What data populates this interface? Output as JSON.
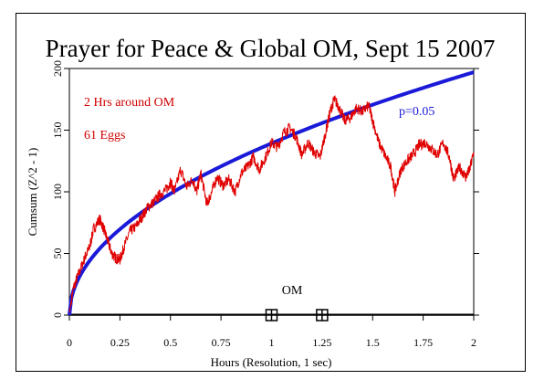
{
  "chart_data": {
    "type": "line",
    "title": "Prayer for Peace & Global OM, Sept 15 2007",
    "xlabel": "Hours (Resolution, 1 sec)",
    "ylabel": "Cumsum (Z^2 - 1)",
    "xlim": [
      0,
      2
    ],
    "ylim": [
      0,
      200
    ],
    "x_ticks": [
      "0",
      "0.25",
      "0.5",
      "0.75",
      "1",
      "1.25",
      "1.5",
      "1.75",
      "2"
    ],
    "y_ticks": [
      "0",
      "50",
      "100",
      "150",
      "200"
    ],
    "annotations": {
      "duration": "2 Hrs around OM",
      "eggs": "61 Eggs",
      "p_label": "p=0.05",
      "event_label": "OM"
    },
    "event_markers_x": [
      1.0,
      1.25
    ],
    "colors": {
      "cumsum": "#e00000",
      "p_curve": "#1a1ad8",
      "text_red": "#d00000",
      "text_blue": "#1a1ad8"
    },
    "series": [
      {
        "x": [
          0,
          0.02,
          0.05,
          0.08,
          0.1,
          0.12,
          0.15,
          0.17,
          0.19,
          0.21,
          0.23,
          0.25,
          0.27,
          0.3,
          0.33,
          0.36,
          0.39,
          0.42,
          0.45,
          0.48,
          0.5,
          0.52,
          0.55,
          0.58,
          0.61,
          0.63,
          0.65,
          0.68,
          0.7,
          0.73,
          0.76,
          0.79,
          0.82,
          0.85,
          0.88,
          0.91,
          0.94,
          0.97,
          1.0,
          1.03,
          1.06,
          1.09,
          1.12,
          1.15,
          1.18,
          1.21,
          1.24,
          1.27,
          1.29,
          1.31,
          1.33,
          1.36,
          1.39,
          1.42,
          1.45,
          1.48,
          1.5,
          1.53,
          1.56,
          1.59,
          1.61,
          1.64,
          1.67,
          1.7,
          1.73,
          1.76,
          1.79,
          1.82,
          1.85,
          1.88,
          1.9,
          1.93,
          1.96,
          1.98,
          2.0
        ],
        "y": [
          2,
          22,
          35,
          48,
          55,
          70,
          78,
          70,
          60,
          50,
          46,
          45,
          55,
          68,
          72,
          80,
          88,
          92,
          98,
          102,
          108,
          100,
          118,
          104,
          110,
          100,
          115,
          90,
          98,
          112,
          105,
          110,
          100,
          115,
          120,
          128,
          118,
          128,
          140,
          136,
          148,
          152,
          145,
          130,
          140,
          132,
          128,
          150,
          165,
          175,
          170,
          158,
          160,
          168,
          165,
          170,
          158,
          140,
          130,
          120,
          100,
          118,
          125,
          130,
          138,
          140,
          135,
          130,
          140,
          128,
          110,
          120,
          112,
          118,
          132
        ]
      }
    ]
  }
}
